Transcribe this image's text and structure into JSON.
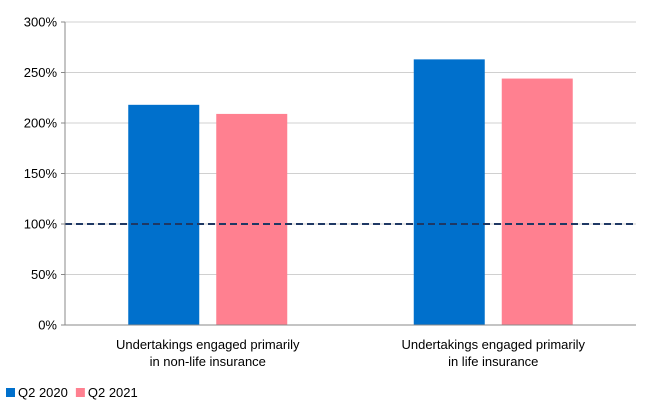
{
  "chart_data": {
    "type": "bar",
    "categories": [
      [
        "Undertakings engaged primarily",
        "in non-life insurance"
      ],
      [
        "Undertakings engaged primarily",
        "in life insurance"
      ]
    ],
    "series": [
      {
        "name": "Q2 2020",
        "values": [
          218,
          263
        ],
        "color": "#0070CC"
      },
      {
        "name": "Q2 2021",
        "values": [
          209,
          244
        ],
        "color": "#FF8090"
      }
    ],
    "y_ticks": [
      "0%",
      "50%",
      "100%",
      "150%",
      "200%",
      "250%",
      "300%"
    ],
    "y_tick_values": [
      0,
      50,
      100,
      150,
      200,
      250,
      300
    ],
    "ylim": [
      0,
      300
    ],
    "reference_line": {
      "value": 100,
      "style": "dashed",
      "color": "#1F3864"
    },
    "grid": true,
    "legend_position": "bottom-left",
    "title": "",
    "xlabel": "",
    "ylabel": ""
  }
}
